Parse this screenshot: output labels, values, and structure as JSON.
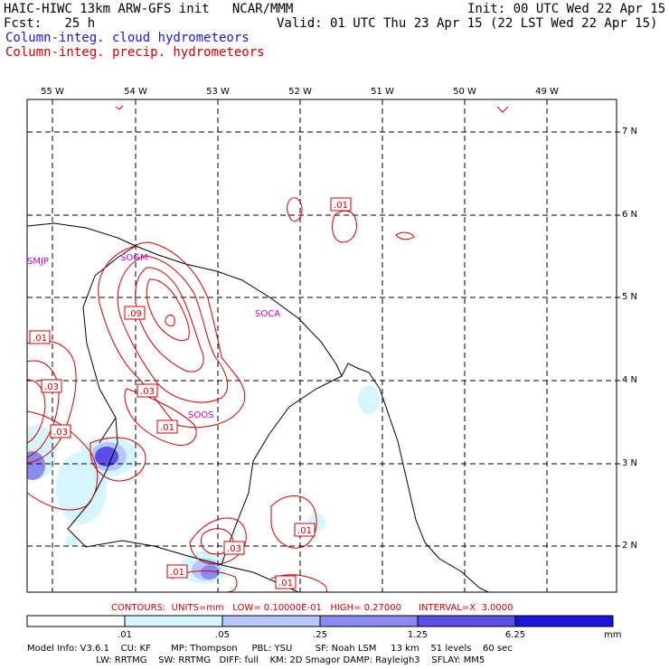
{
  "header": {
    "line1_left": "HAIC-HIWC 13km ARW-GFS init   NCAR/MMM",
    "line1_right": "Init: 00 UTC Wed 22 Apr 15",
    "fcst": "Fcst:   25 h",
    "valid": "Valid: 01 UTC Thu 23 Apr 15 (22 LST Wed 22 Apr 15)",
    "field1": "Column-integ. cloud hydrometeors",
    "field2": "Column-integ. precip. hydrometeors",
    "field1_color": "#1a1acc",
    "field2_color": "#d00000"
  },
  "map": {
    "lon_labels": [
      "55 W",
      "54 W",
      "53 W",
      "52 W",
      "51 W",
      "50 W",
      "49 W"
    ],
    "lat_labels": [
      "7 N",
      "6 N",
      "5 N",
      "4 N",
      "3 N",
      "2 N"
    ],
    "stations": [
      "SMJP",
      "SOGM",
      "SOCA",
      "SOOS"
    ],
    "contour_labels": [
      ".01",
      ".09",
      ".03",
      ".01",
      ".03",
      ".03",
      ".01",
      ".01",
      ".03",
      ".01",
      ".01"
    ]
  },
  "legend": {
    "contours_line": "CONTOURS:  UNITS=mm   LOW= 0.10000E-01   HIGH= 0.27000      INTERVAL=X  3.0000",
    "colorbar_ticks": [
      ".01",
      ".05",
      ".25",
      "1.25",
      "6.25"
    ],
    "colorbar_unit": "mm",
    "colorbar_colors": [
      "#ffffff",
      "#d6f6ff",
      "#b8c6ff",
      "#8a8af2",
      "#5a4ee8",
      "#1a14e0"
    ]
  },
  "footer": {
    "line1": "Model Info: V3.6.1    CU: KF       MP: Thompson     PBL: YSU        SF: Noah LSM     13 km    51 levels    60 sec",
    "line2": "                        LW: RRTMG    SW: RRTMG   DIFF: full    KM: 2D Smagor DAMP: Rayleigh3    SFLAY: MM5"
  }
}
